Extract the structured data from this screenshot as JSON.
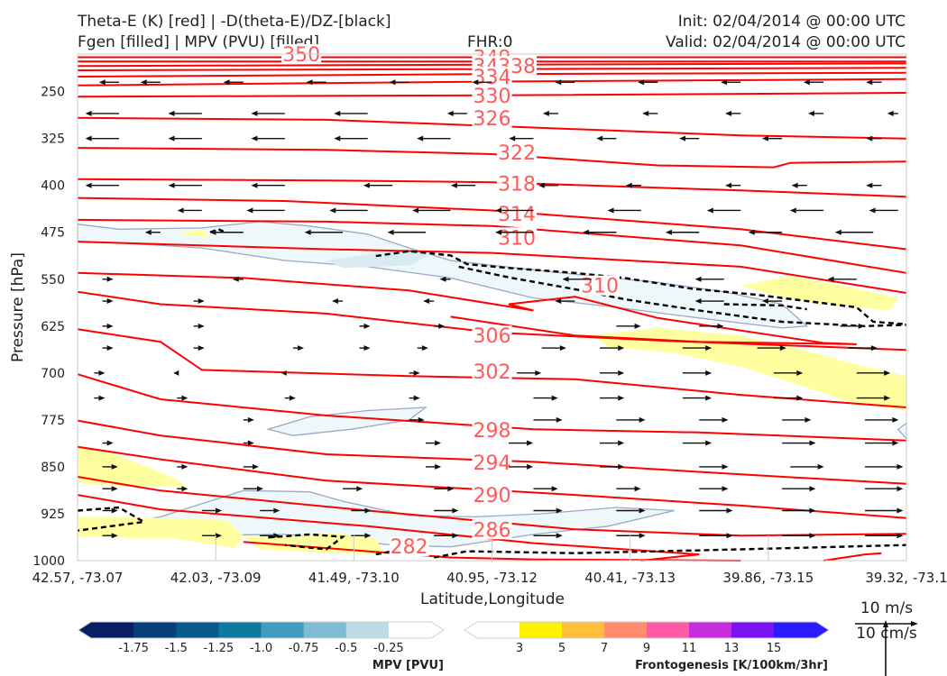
{
  "header": {
    "title_line1": "Theta-E (K) [red] | -D(theta-E)/DZ-[black]",
    "title_line2": "Fgen [filled] | MPV (PVU) [filled]",
    "fhr": "FHR:0",
    "init": "Init: 02/04/2014 @ 00:00 UTC",
    "valid": "Valid: 02/04/2014 @ 00:00 UTC"
  },
  "chart_data": {
    "type": "cross-section",
    "xlabel": "Latitude,Longitude",
    "ylabel": "Pressure [hPa]",
    "x_ticks": [
      "42.57, -73.07",
      "42.03, -73.09",
      "41.49, -73.10",
      "40.95, -73.12",
      "40.41, -73.13",
      "39.86, -73.15",
      "39.32, -73.1"
    ],
    "y_ticks": [
      250,
      325,
      400,
      475,
      550,
      625,
      700,
      775,
      850,
      925,
      1000
    ],
    "y_range": [
      190,
      1000
    ],
    "y_inverted": true,
    "theta_e_colors": {
      "contour": "#ff0000",
      "label": "#ff5a5a",
      "neg_dtheta_dz": "#000000"
    },
    "theta_e_contours": [
      {
        "value": 350,
        "label": "350",
        "lx": 0.27,
        "lp": 190
      },
      {
        "value": 349,
        "label": "349",
        "lx": 0.5,
        "lp": 195
      },
      {
        "value": 342,
        "label": "342",
        "lx": 0.5,
        "lp": 209
      },
      {
        "value": 338,
        "label": "338",
        "lx": 0.53,
        "lp": 209
      },
      {
        "value": 334,
        "label": "334",
        "lx": 0.5,
        "lp": 226
      },
      {
        "value": 330,
        "label": "330",
        "lx": 0.5,
        "lp": 256
      },
      {
        "value": 326,
        "label": "326",
        "lx": 0.5,
        "lp": 292
      },
      {
        "value": 322,
        "label": "322",
        "lx": 0.53,
        "lp": 347
      },
      {
        "value": 318,
        "label": "318",
        "lx": 0.53,
        "lp": 397
      },
      {
        "value": 314,
        "label": "314",
        "lx": 0.53,
        "lp": 445
      },
      {
        "value": 310,
        "label": "310",
        "lx": 0.53,
        "lp": 483
      },
      {
        "value": 310,
        "label": "310",
        "lx": 0.63,
        "lp": 560
      },
      {
        "value": 306,
        "label": "306",
        "lx": 0.5,
        "lp": 640
      },
      {
        "value": 302,
        "label": "302",
        "lx": 0.5,
        "lp": 697
      },
      {
        "value": 298,
        "label": "298",
        "lx": 0.5,
        "lp": 791
      },
      {
        "value": 294,
        "label": "294",
        "lx": 0.5,
        "lp": 843
      },
      {
        "value": 290,
        "label": "290",
        "lx": 0.5,
        "lp": 895
      },
      {
        "value": 286,
        "label": "286",
        "lx": 0.5,
        "lp": 950
      },
      {
        "value": 282,
        "label": "282",
        "lx": 0.4,
        "lp": 977
      }
    ],
    "colorbars": [
      {
        "name": "mpv",
        "label": "MPV [PVU]",
        "ticks": [
          "-1.75",
          "-1.5",
          "-1.25",
          "-1.0",
          "-0.75",
          "-0.5",
          "-0.25"
        ],
        "colors": [
          "#0a1e63",
          "#083f7a",
          "#075a8a",
          "#0f7aa0",
          "#3f9cbf",
          "#80bbd4",
          "#bcdbe6",
          "#ffffff"
        ]
      },
      {
        "name": "fgen",
        "label": "Frontogenesis [K/100km/3hr]",
        "ticks": [
          "3",
          "5",
          "7",
          "9",
          "11",
          "13",
          "15"
        ],
        "colors": [
          "#ffffff",
          "#fff200",
          "#ffbe3c",
          "#ff8c6e",
          "#ff5aa8",
          "#c62ddc",
          "#7a14f0",
          "#2b1cff"
        ]
      }
    ],
    "wind_scale": {
      "label_ms": "10 m/s",
      "label_cms": "10 cm/s"
    }
  }
}
